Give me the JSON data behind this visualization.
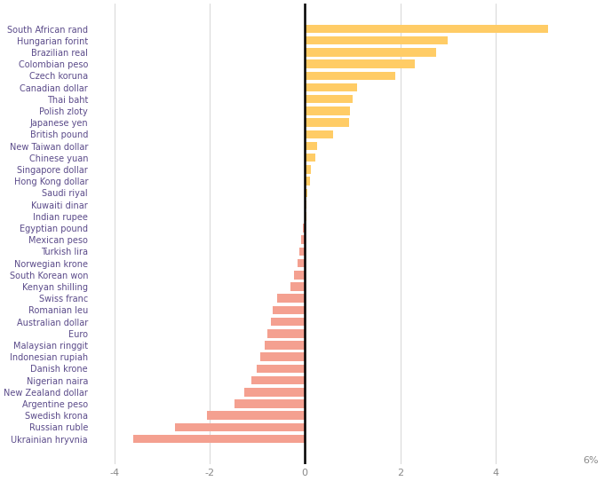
{
  "currencies": [
    "South African rand",
    "Hungarian forint",
    "Brazilian real",
    "Colombian peso",
    "Czech koruna",
    "Canadian dollar",
    "Thai baht",
    "Polish zloty",
    "Japanese yen",
    "British pound",
    "New Taiwan dollar",
    "Chinese yuan",
    "Singapore dollar",
    "Hong Kong dollar",
    "Saudi riyal",
    "Kuwaiti dinar",
    "Indian rupee",
    "Egyptian pound",
    "Mexican peso",
    "Turkish lira",
    "Norwegian krone",
    "South Korean won",
    "Kenyan shilling",
    "Swiss franc",
    "Romanian leu",
    "Australian dollar",
    "Euro",
    "Malaysian ringgit",
    "Indonesian rupiah",
    "Danish krone",
    "Nigerian naira",
    "New Zealand dollar",
    "Argentine peso",
    "Swedish krona",
    "Russian ruble",
    "Ukrainian hryvnia"
  ],
  "values": [
    5.1,
    3.0,
    2.75,
    2.3,
    1.9,
    1.1,
    1.0,
    0.95,
    0.92,
    0.6,
    0.25,
    0.22,
    0.12,
    0.1,
    0.05,
    0.04,
    0.03,
    -0.05,
    -0.07,
    -0.12,
    -0.15,
    -0.22,
    -0.3,
    -0.58,
    -0.68,
    -0.72,
    -0.78,
    -0.84,
    -0.93,
    -1.02,
    -1.13,
    -1.28,
    -1.48,
    -2.05,
    -2.72,
    -3.6
  ],
  "positive_color": "#FFCC66",
  "negative_color": "#F4A090",
  "background_color": "#FFFFFF",
  "grid_color": "#D0D0D0",
  "xlim": [
    -4.5,
    6.2
  ],
  "xticks": [
    -4,
    -2,
    0,
    2,
    4
  ],
  "bar_height": 0.72,
  "label_fontsize": 7.0,
  "tick_fontsize": 8.0,
  "label_color": "#5B4B8A",
  "tick_color": "#888888"
}
